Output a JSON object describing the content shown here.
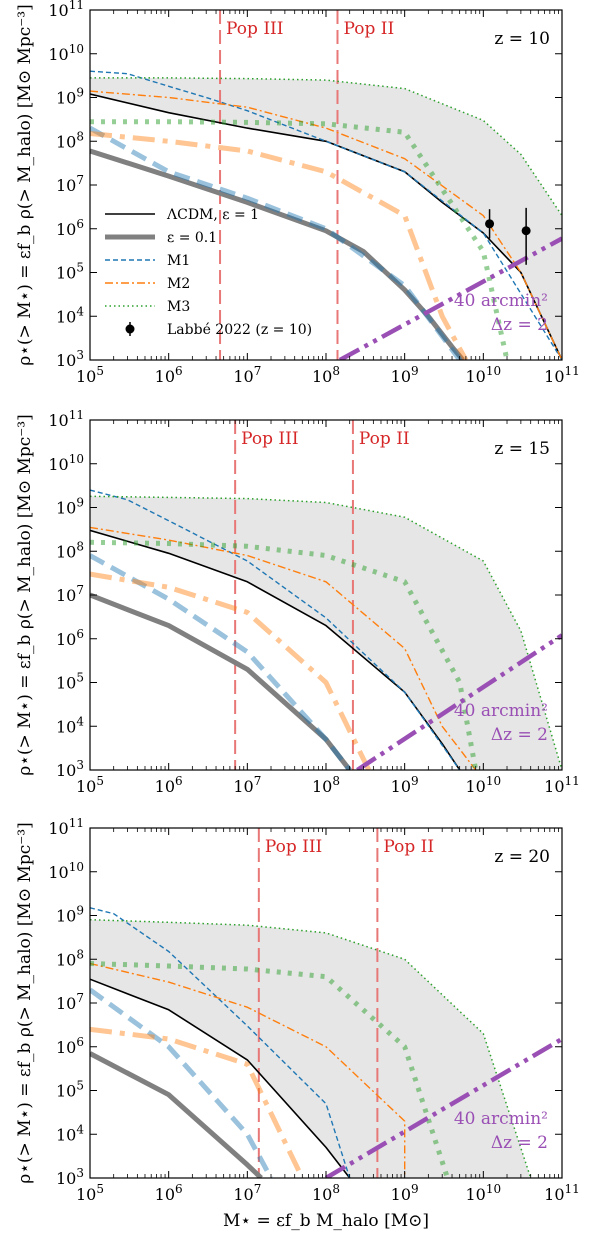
{
  "xlabel": "M⋆ = εf_b M_halo [M⊙]",
  "ylabel": "ρ⋆(> M⋆) = εf_b ρ(> M_halo) [M⊙ Mpc⁻³]",
  "x_ticks": [
    "10^5",
    "10^6",
    "10^7",
    "10^8",
    "10^9",
    "10^10",
    "10^11"
  ],
  "y_ticks": [
    "10^3",
    "10^4",
    "10^5",
    "10^6",
    "10^7",
    "10^8",
    "10^9",
    "10^10",
    "10^11"
  ],
  "pop_labels": {
    "pop3": "Pop III",
    "pop2": "Pop II"
  },
  "survey_label": {
    "line1": "40 arcmin²",
    "line2": "Δz = 2"
  },
  "legend": [
    {
      "label": "ΛCDM, ε = 1",
      "color": "#000000",
      "style": "solid-thin"
    },
    {
      "label": "ε = 0.1",
      "color": "#808080",
      "style": "solid-thick"
    },
    {
      "label": "M1",
      "color": "#1f77b4",
      "style": "dashed"
    },
    {
      "label": "M2",
      "color": "#ff7f0e",
      "style": "dashdot"
    },
    {
      "label": "M3",
      "color": "#2ca02c",
      "style": "dotted"
    },
    {
      "label": "Labbé 2022 (z = 10)",
      "color": "#000000",
      "style": "errorbar"
    }
  ],
  "colors": {
    "lcdm": "#000000",
    "eps01": "#808080",
    "m1": "#1f77b4",
    "m2": "#ff7f0e",
    "m3": "#2ca02c",
    "pop": "#e87777",
    "survey": "#9a4fb4",
    "shade": "#e6e6e6"
  },
  "chart_data": [
    {
      "type": "line",
      "z_label": "z = 10",
      "xscale": "log",
      "yscale": "log",
      "xlim": [
        100000.0,
        100000000000.0
      ],
      "ylim": [
        1000.0,
        100000000000.0
      ],
      "pop3_x": 4500000.0,
      "pop2_x": 140000000.0,
      "series": [
        {
          "name": "ΛCDM, ε = 1",
          "key": "lcdm",
          "x": [
            100000.0,
            1000000.0,
            10000000.0,
            100000000.0,
            1000000000.0,
            3000000000.0,
            10000000000.0,
            30000000000.0,
            100000000000.0
          ],
          "y": [
            1200000000.0,
            450000000.0,
            200000000.0,
            100000000.0,
            20000000.0,
            4000000.0,
            800000.0,
            100000.0,
            1000.0
          ]
        },
        {
          "name": "ε = 0.1",
          "key": "eps01",
          "x": [
            100000.0,
            1000000.0,
            10000000.0,
            100000000.0,
            300000000.0,
            1000000000.0,
            2000000000.0,
            4000000000.0,
            5500000000.0
          ],
          "y": [
            60000000.0,
            16000000.0,
            4000000.0,
            900000.0,
            300000.0,
            40000.0,
            10000.0,
            2000.0,
            1000.0
          ]
        },
        {
          "name": "M1",
          "key": "m1",
          "x": [
            100000.0,
            300000.0,
            1000000.0,
            3000000.0,
            10000000.0,
            100000000.0,
            1000000000.0,
            10000000000.0,
            100000000000.0
          ],
          "y": [
            4000000000.0,
            3500000000.0,
            1800000000.0,
            1000000000.0,
            500000000.0,
            100000000.0,
            20000000.0,
            800000.0,
            1000.0
          ]
        },
        {
          "name": "ε = 0.1 (M1)",
          "key": "m1thick",
          "x": [
            100000.0,
            1000000.0,
            10000000.0,
            100000000.0,
            1000000000.0,
            5000000000.0
          ],
          "y": [
            200000000.0,
            20000000.0,
            5000000.0,
            1000000.0,
            50000.0,
            1000.0
          ]
        },
        {
          "name": "M2",
          "key": "m2",
          "x": [
            100000.0,
            1000000.0,
            10000000.0,
            100000000.0,
            1000000000.0,
            10000000000.0,
            30000000000.0,
            100000000000.0
          ],
          "y": [
            1400000000.0,
            1000000000.0,
            600000000.0,
            200000000.0,
            40000000.0,
            2000000.0,
            100000.0,
            1000.0
          ]
        },
        {
          "name": "ε = 0.1 (M2)",
          "key": "m2thick",
          "x": [
            100000.0,
            1000000.0,
            10000000.0,
            100000000.0,
            1000000000.0,
            3000000000.0,
            6000000000.0
          ],
          "y": [
            150000000.0,
            100000000.0,
            60000000.0,
            20000000.0,
            2000000.0,
            10000.0,
            1000.0
          ]
        },
        {
          "name": "M3",
          "key": "m3",
          "x": [
            100000.0,
            1000000.0,
            10000000.0,
            100000000.0,
            1000000000.0,
            10000000000.0,
            30000000000.0,
            100000000000.0
          ],
          "y": [
            2800000000.0,
            2800000000.0,
            2700000000.0,
            2500000000.0,
            1600000000.0,
            300000000.0,
            50000000.0,
            2000000.0
          ]
        },
        {
          "name": "ε = 0.1 (M3)",
          "key": "m3thick",
          "x": [
            100000.0,
            1000000.0,
            10000000.0,
            100000000.0,
            1000000000.0,
            10000000000.0,
            20000000000.0
          ],
          "y": [
            280000000.0,
            280000000.0,
            270000000.0,
            250000000.0,
            160000000.0,
            300000.0,
            1000.0
          ]
        },
        {
          "name": "40 arcmin², Δz = 2",
          "key": "survey",
          "x": [
            150000000.0,
            100000000000.0
          ],
          "y": [
            1000.0,
            600000.0
          ]
        }
      ],
      "shade_upper": {
        "x": [
          100000.0,
          1000000.0,
          10000000.0,
          100000000.0,
          1000000000.0,
          10000000000.0,
          30000000000.0,
          100000000000.0
        ],
        "y": [
          2800000000.0,
          2800000000.0,
          2700000000.0,
          2500000000.0,
          1600000000.0,
          300000000.0,
          50000000.0,
          2000000.0
        ]
      },
      "shade_lower": {
        "x": [
          100000.0,
          1000000.0,
          10000000.0,
          100000000.0,
          1000000000.0,
          3000000000.0,
          10000000000.0,
          30000000000.0,
          100000000000.0
        ],
        "y": [
          1200000000.0,
          450000000.0,
          200000000.0,
          100000000.0,
          20000000.0,
          4000000.0,
          800000.0,
          100000.0,
          1000.0
        ]
      },
      "points": [
        {
          "name": "Labbé 2022 (z = 10)",
          "x": 12000000000.0,
          "y": 1300000.0,
          "ylo": 600000.0,
          "yhi": 2800000.0
        },
        {
          "name": "Labbé 2022 (z = 10)",
          "x": 35000000000.0,
          "y": 900000.0,
          "ylo": 150000.0,
          "yhi": 3000000.0
        }
      ]
    },
    {
      "type": "line",
      "z_label": "z = 15",
      "xscale": "log",
      "yscale": "log",
      "xlim": [
        100000.0,
        100000000000.0
      ],
      "ylim": [
        1000.0,
        100000000000.0
      ],
      "pop3_x": 7000000.0,
      "pop2_x": 220000000.0,
      "series": [
        {
          "name": "ΛCDM, ε = 1",
          "key": "lcdm",
          "x": [
            100000.0,
            1000000.0,
            10000000.0,
            100000000.0,
            1000000000.0,
            3000000000.0,
            5000000000.0
          ],
          "y": [
            300000000.0,
            90000000.0,
            20000000.0,
            2000000.0,
            60000.0,
            4000.0,
            1000.0
          ]
        },
        {
          "name": "ε = 0.1",
          "key": "eps01",
          "x": [
            100000.0,
            1000000.0,
            10000000.0,
            100000000.0,
            200000000.0
          ],
          "y": [
            10000000.0,
            2000000.0,
            200000.0,
            5000.0,
            1000.0
          ]
        },
        {
          "name": "M1",
          "key": "m1",
          "x": [
            100000.0,
            300000.0,
            1000000.0,
            10000000.0,
            100000000.0,
            1000000000.0,
            5000000000.0
          ],
          "y": [
            2500000000.0,
            1500000000.0,
            500000000.0,
            60000000.0,
            3000000.0,
            60000.0,
            1000.0
          ]
        },
        {
          "name": "ε = 0.1 (M1)",
          "key": "m1thick",
          "x": [
            100000.0,
            1000000.0,
            10000000.0,
            100000000.0,
            200000000.0
          ],
          "y": [
            80000000.0,
            8000000.0,
            500000.0,
            5000.0,
            1000.0
          ]
        },
        {
          "name": "M2",
          "key": "m2",
          "x": [
            100000.0,
            1000000.0,
            10000000.0,
            100000000.0,
            1000000000.0,
            3000000000.0,
            8000000000.0
          ],
          "y": [
            350000000.0,
            180000000.0,
            80000000.0,
            20000000.0,
            600000.0,
            10000.0,
            1000.0
          ]
        },
        {
          "name": "ε = 0.1 (M2)",
          "key": "m2thick",
          "x": [
            100000.0,
            1000000.0,
            10000000.0,
            100000000.0,
            350000000.0
          ],
          "y": [
            30000000.0,
            15000000.0,
            4000000.0,
            100000.0,
            1000.0
          ]
        },
        {
          "name": "M3",
          "key": "m3",
          "x": [
            100000.0,
            1000000.0,
            10000000.0,
            100000000.0,
            1000000000.0,
            10000000000.0,
            30000000000.0,
            100000000000.0
          ],
          "y": [
            1800000000.0,
            1700000000.0,
            1600000000.0,
            1300000000.0,
            600000000.0,
            60000000.0,
            1500000.0,
            1000.0
          ]
        },
        {
          "name": "ε = 0.1 (M3)",
          "key": "m3thick",
          "x": [
            100000.0,
            1000000.0,
            10000000.0,
            100000000.0,
            1000000000.0,
            5000000000.0,
            8000000000.0
          ],
          "y": [
            160000000.0,
            150000000.0,
            130000000.0,
            80000000.0,
            20000000.0,
            100000.0,
            1000.0
          ]
        },
        {
          "name": "40 arcmin², Δz = 2",
          "key": "survey",
          "x": [
            250000000.0,
            100000000000.0
          ],
          "y": [
            1000.0,
            1200000.0
          ]
        }
      ],
      "shade_upper": {
        "x": [
          100000.0,
          1000000.0,
          10000000.0,
          100000000.0,
          1000000000.0,
          10000000000.0,
          30000000000.0,
          100000000000.0
        ],
        "y": [
          1800000000.0,
          1700000000.0,
          1600000000.0,
          1300000000.0,
          600000000.0,
          60000000.0,
          1500000.0,
          1000.0
        ]
      },
      "shade_lower": {
        "x": [
          100000.0,
          1000000.0,
          10000000.0,
          100000000.0,
          1000000000.0,
          3000000000.0,
          5000000000.0
        ],
        "y": [
          300000000.0,
          90000000.0,
          20000000.0,
          2000000.0,
          60000.0,
          4000.0,
          1000.0
        ]
      },
      "points": []
    },
    {
      "type": "line",
      "z_label": "z = 20",
      "xscale": "log",
      "yscale": "log",
      "xlim": [
        100000.0,
        100000000000.0
      ],
      "ylim": [
        1000.0,
        100000000000.0
      ],
      "pop3_x": 14000000.0,
      "pop2_x": 450000000.0,
      "series": [
        {
          "name": "ΛCDM, ε = 1",
          "key": "lcdm",
          "x": [
            100000.0,
            1000000.0,
            10000000.0,
            100000000.0,
            200000000.0
          ],
          "y": [
            35000000.0,
            7000000.0,
            500000.0,
            5000.0,
            1000.0
          ]
        },
        {
          "name": "ε = 0.1",
          "key": "eps01",
          "x": [
            100000.0,
            1000000.0,
            10000000.0,
            15000000.0
          ],
          "y": [
            700000.0,
            80000.0,
            2000.0,
            1000.0
          ]
        },
        {
          "name": "M1",
          "key": "m1",
          "x": [
            100000.0,
            200000.0,
            1000000.0,
            10000000.0,
            100000000.0,
            200000000.0
          ],
          "y": [
            1500000000.0,
            1100000000.0,
            150000000.0,
            3000000.0,
            50000.0,
            1000.0
          ]
        },
        {
          "name": "ε = 0.1 (M1)",
          "key": "m1thick",
          "x": [
            100000.0,
            1000000.0,
            10000000.0,
            20000000.0
          ],
          "y": [
            20000000.0,
            1000000.0,
            10000.0,
            1000.0
          ]
        },
        {
          "name": "M2",
          "key": "m2",
          "x": [
            100000.0,
            1000000.0,
            10000000.0,
            100000000.0,
            1000000000.0,
            1000000000.0
          ],
          "y": [
            80000000.0,
            30000000.0,
            8000000.0,
            1000000.0,
            20000.0,
            1000.0
          ]
        },
        {
          "name": "ε = 0.1 (M2)",
          "key": "m2thick",
          "x": [
            100000.0,
            1000000.0,
            10000000.0,
            50000000.0
          ],
          "y": [
            2500000.0,
            1500000.0,
            400000.0,
            1000.0
          ]
        },
        {
          "name": "M3",
          "key": "m3",
          "x": [
            100000.0,
            1000000.0,
            10000000.0,
            100000000.0,
            1000000000.0,
            10000000000.0,
            40000000000.0
          ],
          "y": [
            800000000.0,
            700000000.0,
            600000000.0,
            400000000.0,
            100000000.0,
            2000000.0,
            1000.0
          ]
        },
        {
          "name": "ε = 0.1 (M3)",
          "key": "m3thick",
          "x": [
            100000.0,
            1000000.0,
            10000000.0,
            100000000.0,
            1000000000.0,
            3500000000.0
          ],
          "y": [
            80000000.0,
            70000000.0,
            60000000.0,
            40000000.0,
            1000000.0,
            1000.0
          ]
        },
        {
          "name": "40 arcmin², Δz = 2",
          "key": "survey",
          "x": [
            100000000.0,
            100000000000.0
          ],
          "y": [
            1000.0,
            1500000.0
          ]
        }
      ],
      "shade_upper": {
        "x": [
          100000.0,
          1000000.0,
          10000000.0,
          100000000.0,
          1000000000.0,
          10000000000.0,
          40000000000.0
        ],
        "y": [
          800000000.0,
          700000000.0,
          600000000.0,
          400000000.0,
          100000000.0,
          2000000.0,
          1000.0
        ]
      },
      "shade_lower": {
        "x": [
          100000.0,
          1000000.0,
          10000000.0,
          100000000.0,
          200000000.0
        ],
        "y": [
          35000000.0,
          7000000.0,
          500000.0,
          5000.0,
          1000.0
        ]
      },
      "points": []
    }
  ]
}
